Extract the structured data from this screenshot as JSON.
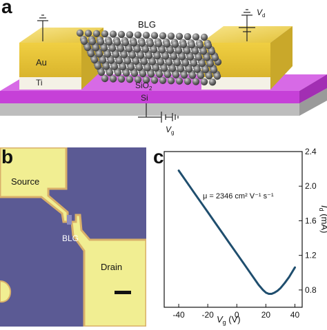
{
  "panel_a": {
    "letter": "a",
    "labels": {
      "blg": "BLG",
      "au": "Au",
      "ti": "Ti",
      "sio2_base": "SiO",
      "sio2_sub": "2",
      "si": "Si",
      "vd_base": "V",
      "vd_sub": "d",
      "vg_base": "V",
      "vg_sub": "g"
    },
    "colors": {
      "gold": "#e8c640",
      "gold_dark": "#c9a82a",
      "oxide": "#c640d8",
      "silicon": "#c8c8c8",
      "sphere": "#6f6f6f"
    }
  },
  "panel_b": {
    "letter": "b",
    "labels": {
      "source": "Source",
      "drain": "Drain",
      "blg": "BLG"
    },
    "colors": {
      "background": "#5b5a94",
      "electrode": "#f1ee92",
      "edge": "#d9b06a"
    }
  },
  "panel_c": {
    "letter": "c",
    "annotation": "μ = 2346 cm² V⁻¹ s⁻¹",
    "chart_data": {
      "type": "line",
      "xlabel_base": "V",
      "xlabel_sub": "g",
      "xlabel_unit": " (V)",
      "ylabel_base": "I",
      "ylabel_sub": "d",
      "ylabel_unit": " (mA)",
      "xlim": [
        -50,
        45
      ],
      "ylim": [
        0.6,
        2.4
      ],
      "xticks": [
        -40,
        -20,
        0,
        20,
        40
      ],
      "yticks": [
        0.8,
        1.2,
        1.6,
        2.0,
        2.4
      ],
      "xtick_labels": [
        "-40",
        "-20",
        "0",
        "20",
        "40"
      ],
      "ytick_labels": [
        "0.8",
        "1.2",
        "1.6",
        "2.0",
        "2.4"
      ],
      "series": [
        {
          "color": "#1f4e6e",
          "x": [
            -40,
            -35,
            -30,
            -25,
            -20,
            -15,
            -10,
            -5,
            0,
            5,
            10,
            15,
            18,
            20,
            22,
            24,
            26,
            28,
            30,
            33,
            36,
            40
          ],
          "y": [
            2.18,
            2.06,
            1.94,
            1.82,
            1.7,
            1.58,
            1.46,
            1.34,
            1.22,
            1.1,
            0.98,
            0.86,
            0.8,
            0.77,
            0.755,
            0.755,
            0.77,
            0.79,
            0.82,
            0.88,
            0.95,
            1.06
          ]
        }
      ],
      "grid": false
    }
  }
}
